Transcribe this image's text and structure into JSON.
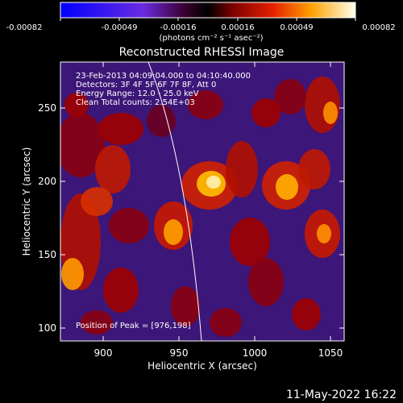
{
  "colorbar": {
    "tick_labels": [
      "-0.00082",
      "-0.00049",
      "-0.00016",
      "0.00016",
      "0.00049",
      "0.00082"
    ],
    "units_label": "(photons cm⁻² s⁻¹ asec⁻²)"
  },
  "title": "Reconstructed RHESSI Image",
  "info": {
    "time_range": "23-Feb-2013 04:09:04.000  to  04:10:40.000",
    "detectors": "Detectors: 3F 4F 5F 6F 7F 8F, Att 0",
    "energy_range": "Energy Range: 12.0 - 25.0 keV",
    "clean_line": "Clean     Total counts: 2.54E+03",
    "peak": "Position of Peak = [976,198]"
  },
  "axes": {
    "x_label": "Heliocentric X (arcsec)",
    "y_label": "Heliocentric Y (arcsec)",
    "x_ticks": [
      "900",
      "950",
      "1000",
      "1050"
    ],
    "y_ticks": [
      "100",
      "150",
      "200",
      "250"
    ]
  },
  "footer_date": "11-May-2022 16:22",
  "colors": {
    "background": "#000000",
    "text": "#ffffff"
  }
}
